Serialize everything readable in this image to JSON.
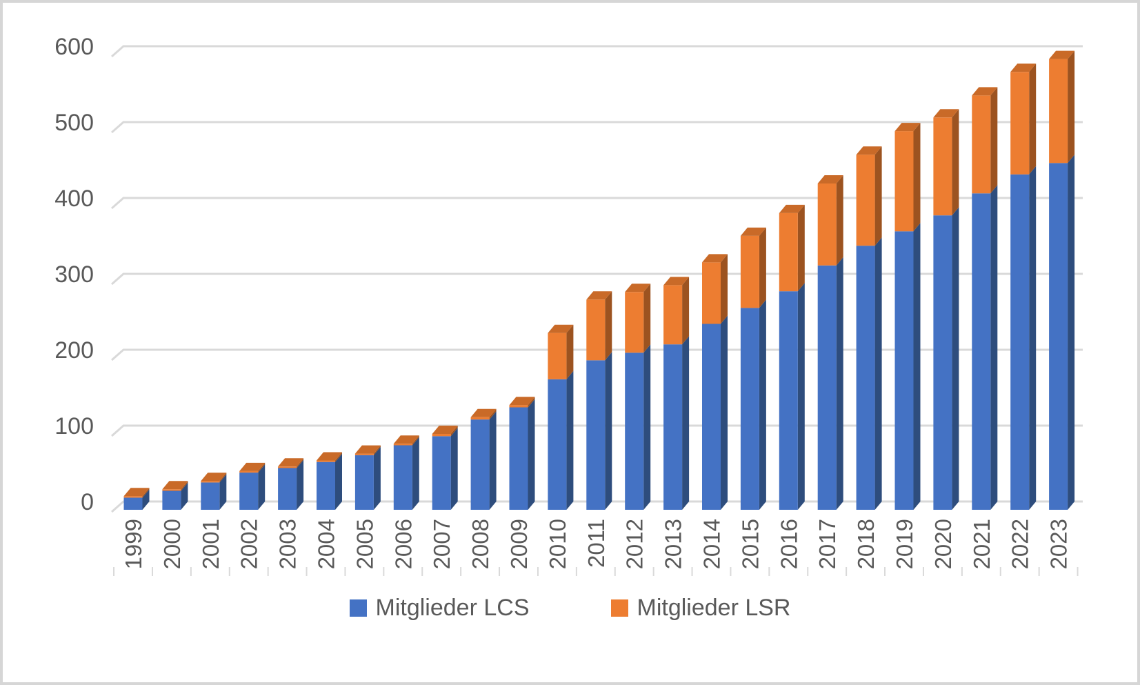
{
  "chart_data": {
    "type": "bar",
    "variant": "3d-stacked-column",
    "title": "",
    "xlabel": "",
    "ylabel": "",
    "categories": [
      "1999",
      "2000",
      "2001",
      "2002",
      "2003",
      "2004",
      "2005",
      "2006",
      "2007",
      "2008",
      "2009",
      "2010",
      "2011",
      "2012",
      "2013",
      "2014",
      "2015",
      "2016",
      "2017",
      "2018",
      "2019",
      "2020",
      "2021",
      "2022",
      "2023"
    ],
    "series": [
      {
        "name": "Mitglieder LCS",
        "color": "#4472C4",
        "side_color": "#2E4D7D",
        "values": [
          16,
          25,
          36,
          49,
          55,
          63,
          72,
          85,
          97,
          119,
          135,
          172,
          197,
          207,
          218,
          245,
          266,
          288,
          322,
          348,
          367,
          388,
          417,
          442,
          457
        ]
      },
      {
        "name": "Mitglieder LSR",
        "color": "#ED7D31",
        "side_color": "#9C5320",
        "top_color": "#C96A28",
        "values": [
          2,
          2,
          2,
          2,
          2,
          2,
          2,
          2,
          3,
          3,
          3,
          61,
          80,
          80,
          78,
          81,
          95,
          103,
          108,
          120,
          132,
          129,
          129,
          135,
          137
        ]
      }
    ],
    "ylim": [
      0,
      600
    ],
    "ytick_step": 100,
    "yticks": [
      "0",
      "100",
      "200",
      "300",
      "400",
      "500",
      "600"
    ],
    "grid": true,
    "legend_position": "bottom",
    "axis_text_color": "#595959",
    "gridline_color": "#D9D9D9",
    "background": "#FFFFFF",
    "border_color": "#D6D6D6"
  },
  "legend": {
    "items": [
      {
        "label": "Mitglieder LCS",
        "color": "#4472C4"
      },
      {
        "label": "Mitglieder LSR",
        "color": "#ED7D31"
      }
    ]
  }
}
